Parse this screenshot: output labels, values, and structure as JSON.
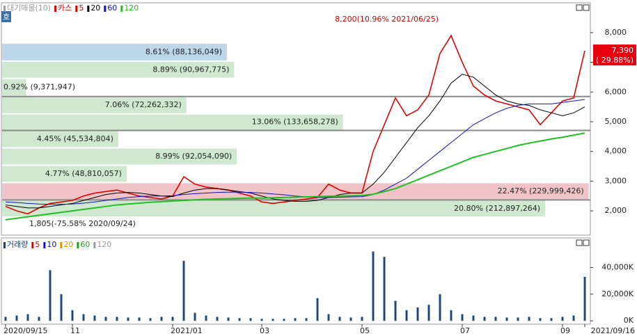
{
  "chart_data": [
    {
      "type": "price",
      "legend": [
        {
          "name": "대기매물(10)",
          "color": "#9a9a9a"
        },
        {
          "name": "카스",
          "color": "#e00000"
        },
        {
          "name": "5",
          "color": "#e00000"
        },
        {
          "name": "20",
          "color": "#000000"
        },
        {
          "name": "60",
          "color": "#1010c0"
        },
        {
          "name": "120",
          "color": "#20c020"
        }
      ],
      "categories": [
        "2020/09/15",
        null,
        null,
        null,
        null,
        null,
        "11",
        null,
        null,
        null,
        null,
        null,
        null,
        null,
        null,
        "2021/01",
        null,
        null,
        null,
        null,
        null,
        null,
        null,
        "03",
        null,
        null,
        null,
        null,
        null,
        null,
        null,
        null,
        "05",
        null,
        null,
        null,
        null,
        null,
        null,
        null,
        null,
        "07",
        null,
        null,
        null,
        null,
        null,
        null,
        null,
        null,
        "09",
        null,
        "2021/09/16"
      ],
      "series": [
        {
          "name": "카스",
          "color": "#e00000",
          "values": [
            2150,
            2000,
            1900,
            2100,
            2250,
            2300,
            2350,
            2500,
            2600,
            2650,
            2700,
            2600,
            2500,
            2450,
            2400,
            2500,
            3150,
            2900,
            2800,
            2750,
            2700,
            2600,
            2500,
            2300,
            2250,
            2300,
            2350,
            2400,
            2450,
            2900,
            2700,
            2600,
            2600,
            4000,
            4900,
            5800,
            5200,
            5400,
            5900,
            7300,
            7900,
            7000,
            6200,
            5900,
            5700,
            5600,
            5500,
            5400,
            4900,
            5300,
            5700,
            5800,
            7390
          ]
        },
        {
          "name": "20",
          "color": "#000000",
          "values": [
            2200,
            2150,
            2100,
            2100,
            2150,
            2200,
            2250,
            2350,
            2450,
            2550,
            2600,
            2620,
            2600,
            2550,
            2500,
            2480,
            2600,
            2700,
            2750,
            2750,
            2700,
            2650,
            2600,
            2500,
            2400,
            2350,
            2320,
            2320,
            2350,
            2450,
            2550,
            2600,
            2600,
            2900,
            3300,
            3800,
            4300,
            4800,
            5200,
            5700,
            6300,
            6600,
            6500,
            6200,
            5900,
            5700,
            5600,
            5550,
            5400,
            5300,
            5200,
            5300,
            5500
          ]
        },
        {
          "name": "60",
          "color": "#1010c0",
          "values": [
            2300,
            2280,
            2250,
            2230,
            2220,
            2220,
            2230,
            2260,
            2300,
            2350,
            2400,
            2450,
            2480,
            2500,
            2500,
            2510,
            2550,
            2580,
            2600,
            2620,
            2630,
            2630,
            2620,
            2600,
            2570,
            2540,
            2500,
            2470,
            2450,
            2450,
            2460,
            2470,
            2480,
            2550,
            2700,
            2900,
            3100,
            3400,
            3700,
            4000,
            4300,
            4600,
            4900,
            5100,
            5300,
            5450,
            5550,
            5600,
            5600,
            5600,
            5650,
            5700,
            5750
          ]
        },
        {
          "name": "120",
          "color": "#20c020",
          "values": [
            1700,
            1750,
            1800,
            1850,
            1900,
            1950,
            2000,
            2050,
            2100,
            2150,
            2200,
            2230,
            2260,
            2290,
            2310,
            2330,
            2350,
            2370,
            2390,
            2400,
            2410,
            2420,
            2430,
            2430,
            2440,
            2450,
            2460,
            2470,
            2480,
            2490,
            2500,
            2510,
            2520,
            2560,
            2650,
            2750,
            2900,
            3050,
            3200,
            3350,
            3500,
            3650,
            3800,
            3900,
            4000,
            4100,
            4200,
            4280,
            4350,
            4420,
            4480,
            4550,
            4620
          ]
        }
      ],
      "ylim": [
        1370,
        8630
      ],
      "yticks": [
        {
          "value": 2000,
          "label": "2,000"
        },
        {
          "value": 3000,
          "label": "3,000"
        },
        {
          "value": 4000,
          "label": "4,000"
        },
        {
          "value": 5000,
          "label": "5,000"
        },
        {
          "value": 6000,
          "label": "6,000"
        },
        {
          "value": 7000,
          "label": "7,000"
        },
        {
          "value": 8000,
          "label": "8,000"
        }
      ],
      "profile": {
        "values": [
          8.61,
          8.89,
          0.92,
          7.06,
          13.06,
          4.45,
          8.99,
          4.77,
          22.47,
          20.8
        ],
        "value_labels": [
          "8.61% (88,136,049)",
          "8.89% (90,967,775)",
          "0.92% (9,371,947)",
          "7.06% (72,262,332)",
          "13.06% (133,658,278)",
          "4.45% (45,534,804)",
          "8.99% (92,054,090)",
          "4.77% (48,810,057)",
          "22.47% (229,999,426)",
          "20.80% (212,897,264)"
        ],
        "edges": [
          7650,
          7042,
          6458,
          5850,
          5266,
          4706,
          4121,
          3537,
          2953,
          2369,
          1785
        ],
        "colors": [
          "#bcd6ea",
          "#cfe8cf",
          "#cfe8cf",
          "#cfe8cf",
          "#cfe8cf",
          "#cfe8cf",
          "#cfe8cf",
          "#cfe8cf",
          "#f0c4c6",
          "#cfe8cf"
        ]
      },
      "annotations": [
        "8,200(10.96% 2021/06/25)",
        "1,805(-75.58% 2020/09/24)",
        "7,390",
        "( 29.88%)"
      ],
      "tag": "호"
    },
    {
      "type": "volume",
      "legend": [
        {
          "name": "거래량",
          "color": "#1a3d6e"
        },
        {
          "name": "5",
          "color": "#e00000"
        },
        {
          "name": "10",
          "color": "#1010c0"
        },
        {
          "name": "20",
          "color": "#e09000"
        },
        {
          "name": "60",
          "color": "#20a020"
        },
        {
          "name": "120",
          "color": "#9a9a9a"
        }
      ],
      "color": "#1a4a7a",
      "values": [
        3000,
        4000,
        5000,
        3000,
        38000,
        20000,
        8000,
        5000,
        4000,
        3000,
        3000,
        2500,
        2500,
        2000,
        3000,
        3000,
        45000,
        6000,
        4000,
        3000,
        2500,
        2000,
        2000,
        1500,
        1500,
        1500,
        2000,
        2000,
        17000,
        5000,
        3000,
        2500,
        3000,
        52000,
        48000,
        15000,
        8000,
        10000,
        12000,
        20000,
        8000,
        5000,
        4000,
        3000,
        3000,
        2500,
        2500,
        3000,
        2000,
        2000,
        3000,
        4000,
        33000
      ],
      "ylim": [
        -2500,
        58000
      ],
      "yticks": [
        {
          "value": 0,
          "label": "0K"
        },
        {
          "value": 20000,
          "label": "20,000K"
        },
        {
          "value": 40000,
          "label": "40,000K"
        }
      ]
    }
  ]
}
